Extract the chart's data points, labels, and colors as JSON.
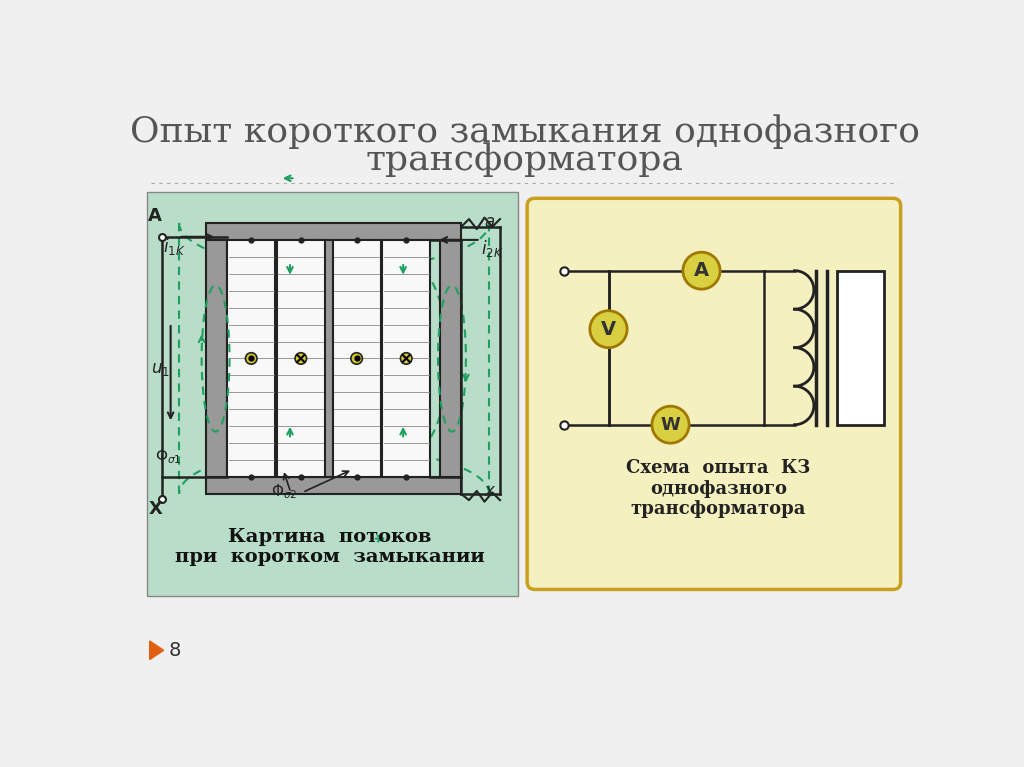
{
  "title_line1": "Опыт короткого замыкания однофазного",
  "title_line2": "трансформатора",
  "title_fontsize": 26,
  "title_color": "#555555",
  "bg_color": "#f0f0f0",
  "left_panel_bg": "#b8ddc8",
  "right_panel_bg": "#f5f0c0",
  "right_panel_border": "#c8a020",
  "caption_left_line1": "Картина  потоков",
  "caption_left_line2": "при  коротком  замыкании",
  "caption_right_line1": "Схема  опыта  КЗ",
  "caption_right_line2": "однофазного",
  "caption_right_line3": "трансформатора",
  "page_number": "8",
  "arrow_color": "#20a060",
  "wire_color": "#222222",
  "meter_yellow": "#d8d040",
  "coil_yellow": "#d8c830"
}
